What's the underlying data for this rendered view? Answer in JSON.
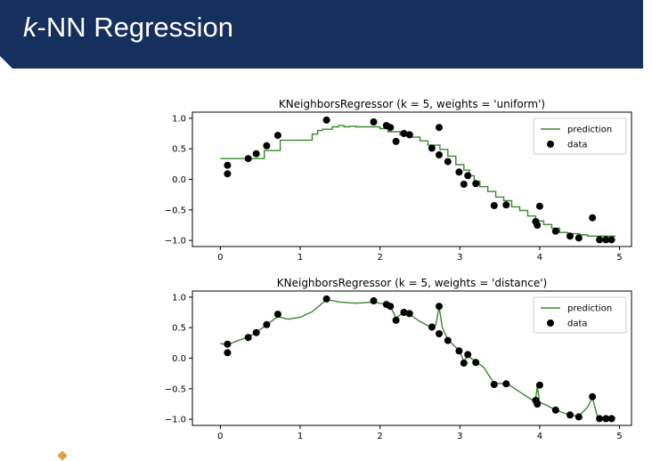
{
  "slide": {
    "title_prefix": "k",
    "title_rest": "-NN Regression",
    "title_bar_color": "#16305e",
    "accent_color": "#d9a23a"
  },
  "colors": {
    "prediction": "#3a8a2e",
    "data": "#000000"
  },
  "chart_data": [
    {
      "type": "scatter",
      "title": "KNeighborsRegressor (k = 5, weights = 'uniform')",
      "xlabel": "",
      "ylabel": "",
      "xlim": [
        -0.35,
        5.15
      ],
      "ylim": [
        -1.1,
        1.1
      ],
      "xticks": [
        0,
        1,
        2,
        3,
        4,
        5
      ],
      "xtick_labels": [
        "0",
        "1",
        "2",
        "3",
        "4",
        "5"
      ],
      "yticks": [
        1.0,
        0.5,
        0.0,
        -0.5,
        -1.0
      ],
      "ytick_labels": [
        "1.0",
        "0.5",
        "0.0",
        "−0.5",
        "−1.0"
      ],
      "grid": false,
      "legend_position": "top-right",
      "legend": [
        "prediction",
        "data"
      ],
      "data": {
        "x": [
          0.09,
          0.09,
          0.35,
          0.45,
          0.58,
          0.72,
          1.33,
          1.92,
          2.08,
          2.13,
          2.2,
          2.3,
          2.37,
          2.65,
          2.74,
          2.74,
          2.85,
          2.99,
          3.05,
          3.1,
          3.2,
          3.43,
          3.58,
          3.95,
          4.0,
          3.97,
          4.2,
          4.38,
          4.49,
          4.66,
          4.75,
          4.83,
          4.9
        ],
        "y": [
          0.23,
          0.09,
          0.34,
          0.42,
          0.55,
          0.72,
          0.97,
          0.94,
          0.88,
          0.85,
          0.62,
          0.75,
          0.73,
          0.51,
          0.85,
          0.4,
          0.29,
          0.12,
          -0.08,
          0.06,
          -0.07,
          -0.43,
          -0.42,
          -0.69,
          -0.44,
          -0.75,
          -0.85,
          -0.93,
          -0.96,
          -0.63,
          -0.99,
          -0.99,
          -0.99
        ]
      },
      "prediction": {
        "x": [
          0.0,
          0.5,
          0.55,
          0.75,
          1.15,
          1.22,
          1.28,
          1.4,
          1.48,
          1.55,
          1.62,
          1.7,
          2.0,
          2.1,
          2.25,
          2.35,
          2.5,
          2.6,
          2.75,
          2.85,
          2.95,
          3.05,
          3.12,
          3.18,
          3.25,
          3.35,
          3.45,
          3.55,
          3.65,
          3.75,
          3.85,
          3.95,
          4.05,
          4.15,
          4.25,
          4.35,
          4.5,
          4.6,
          4.7,
          4.95
        ],
        "y": [
          0.34,
          0.34,
          0.47,
          0.64,
          0.74,
          0.8,
          0.82,
          0.86,
          0.88,
          0.86,
          0.87,
          0.86,
          0.83,
          0.78,
          0.73,
          0.69,
          0.63,
          0.56,
          0.49,
          0.38,
          0.24,
          0.15,
          0.06,
          -0.03,
          -0.12,
          -0.2,
          -0.29,
          -0.35,
          -0.45,
          -0.51,
          -0.6,
          -0.68,
          -0.74,
          -0.8,
          -0.87,
          -0.89,
          -0.91,
          -0.93,
          -0.93,
          -0.93
        ]
      }
    },
    {
      "type": "scatter",
      "title": "KNeighborsRegressor (k = 5, weights = 'distance')",
      "xlabel": "",
      "ylabel": "",
      "xlim": [
        -0.35,
        5.15
      ],
      "ylim": [
        -1.1,
        1.1
      ],
      "xticks": [
        0,
        1,
        2,
        3,
        4,
        5
      ],
      "xtick_labels": [
        "0",
        "1",
        "2",
        "3",
        "4",
        "5"
      ],
      "yticks": [
        1.0,
        0.5,
        0.0,
        -0.5,
        -1.0
      ],
      "ytick_labels": [
        "1.0",
        "0.5",
        "0.0",
        "−0.5",
        "−1.0"
      ],
      "grid": false,
      "legend_position": "top-right",
      "legend": [
        "prediction",
        "data"
      ],
      "data": {
        "x": [
          0.09,
          0.09,
          0.35,
          0.45,
          0.58,
          0.72,
          1.33,
          1.92,
          2.08,
          2.13,
          2.2,
          2.3,
          2.37,
          2.65,
          2.74,
          2.74,
          2.85,
          2.99,
          3.05,
          3.1,
          3.2,
          3.43,
          3.58,
          3.95,
          4.0,
          3.97,
          4.2,
          4.38,
          4.49,
          4.66,
          4.75,
          4.83,
          4.9
        ],
        "y": [
          0.23,
          0.09,
          0.34,
          0.42,
          0.55,
          0.72,
          0.97,
          0.94,
          0.88,
          0.85,
          0.62,
          0.75,
          0.73,
          0.51,
          0.85,
          0.4,
          0.29,
          0.12,
          -0.08,
          0.06,
          -0.07,
          -0.43,
          -0.42,
          -0.69,
          -0.44,
          -0.75,
          -0.85,
          -0.93,
          -0.96,
          -0.63,
          -0.99,
          -0.99,
          -0.99
        ]
      },
      "prediction": {
        "x": [
          0.0,
          0.09,
          0.2,
          0.35,
          0.45,
          0.58,
          0.72,
          0.85,
          1.0,
          1.15,
          1.33,
          1.5,
          1.7,
          1.92,
          2.08,
          2.13,
          2.2,
          2.3,
          2.37,
          2.5,
          2.65,
          2.7,
          2.74,
          2.78,
          2.85,
          2.99,
          3.05,
          3.1,
          3.2,
          3.3,
          3.43,
          3.58,
          3.75,
          3.9,
          3.95,
          3.97,
          4.0,
          4.1,
          4.2,
          4.38,
          4.49,
          4.6,
          4.66,
          4.72,
          4.75,
          4.83,
          4.95
        ],
        "y": [
          0.24,
          0.22,
          0.28,
          0.35,
          0.42,
          0.55,
          0.68,
          0.64,
          0.67,
          0.76,
          0.96,
          0.92,
          0.9,
          0.92,
          0.88,
          0.85,
          0.66,
          0.75,
          0.72,
          0.6,
          0.5,
          0.55,
          0.84,
          0.5,
          0.3,
          0.13,
          -0.05,
          0.04,
          -0.06,
          -0.15,
          -0.42,
          -0.41,
          -0.55,
          -0.68,
          -0.66,
          -0.46,
          -0.72,
          -0.78,
          -0.85,
          -0.93,
          -0.95,
          -0.8,
          -0.64,
          -0.95,
          -0.99,
          -0.99,
          -0.97
        ]
      }
    }
  ]
}
